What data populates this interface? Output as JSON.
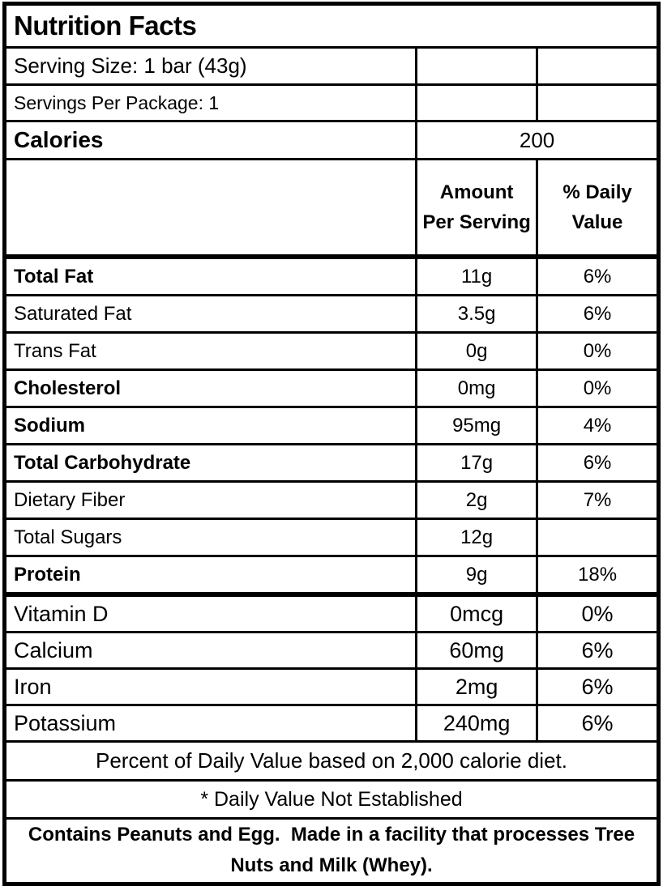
{
  "label": {
    "title": "Nutrition Facts",
    "serving_size": "Serving Size: 1 bar (43g)",
    "servings_per_package": "Servings Per Package: 1",
    "calories_label": "Calories",
    "calories_value": "200",
    "columns": {
      "amount_header": "Amount Per Serving",
      "daily_value_header": "% Daily Value"
    },
    "nutrients": [
      {
        "name": "Total Fat",
        "amount": "11g",
        "dv": "6%"
      },
      {
        "name": "Saturated Fat",
        "amount": "3.5g",
        "dv": "6%"
      },
      {
        "name": "Trans Fat",
        "amount": "0g",
        "dv": "0%"
      },
      {
        "name": "Cholesterol",
        "amount": "0mg",
        "dv": "0%"
      },
      {
        "name": "Sodium",
        "amount": "95mg",
        "dv": "4%"
      },
      {
        "name": "Total Carbohydrate",
        "amount": "17g",
        "dv": "6%"
      },
      {
        "name": "Dietary Fiber",
        "amount": "2g",
        "dv": "7%"
      },
      {
        "name": "Total Sugars",
        "amount": "12g",
        "dv": ""
      },
      {
        "name": "Protein",
        "amount": "9g",
        "dv": "18%"
      }
    ],
    "micronutrients": [
      {
        "name": "Vitamin D",
        "amount": "0mcg",
        "dv": "0%"
      },
      {
        "name": "Calcium",
        "amount": "60mg",
        "dv": "6%"
      },
      {
        "name": "Iron",
        "amount": "2mg",
        "dv": "6%"
      },
      {
        "name": "Potassium",
        "amount": "240mg",
        "dv": "6%"
      }
    ],
    "footnote_percent": "Percent of Daily Value based on 2,000 calorie diet.",
    "footnote_daily_value": "* Daily Value Not Established",
    "allergen_statement": "Contains Peanuts and Egg.  Made in a facility that processes Tree Nuts and Milk (Whey)."
  },
  "colors": {
    "border": "#000000",
    "text": "#000000",
    "background": "#ffffff"
  }
}
